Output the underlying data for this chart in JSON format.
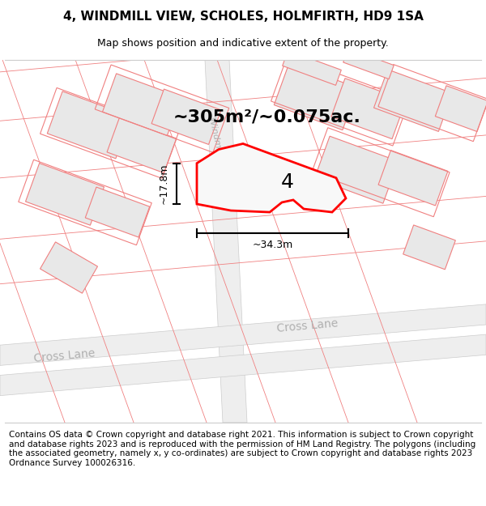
{
  "title": "4, WINDMILL VIEW, SCHOLES, HOLMFIRTH, HD9 1SA",
  "subtitle": "Map shows position and indicative extent of the property.",
  "footer": "Contains OS data © Crown copyright and database right 2021. This information is subject to Crown copyright and database rights 2023 and is reproduced with the permission of HM Land Registry. The polygons (including the associated geometry, namely x, y co-ordinates) are subject to Crown copyright and database rights 2023 Ordnance Survey 100026316.",
  "area_label": "~305m²/~0.075ac.",
  "number_label": "4",
  "width_label": "~34.3m",
  "height_label": "~17.8m",
  "map_bg": "#ffffff",
  "building_fill": "#e8e8e8",
  "pink_line_color": "#f08080",
  "red_poly_color": "#ff0000",
  "road_fill": "#f5f5f5",
  "road_edge": "#d0d0d0",
  "street_color": "#b0b0b0",
  "title_fontsize": 11,
  "subtitle_fontsize": 9,
  "footer_fontsize": 7.5,
  "area_label_fontsize": 16,
  "dim_fontsize": 9,
  "number_fontsize": 18
}
